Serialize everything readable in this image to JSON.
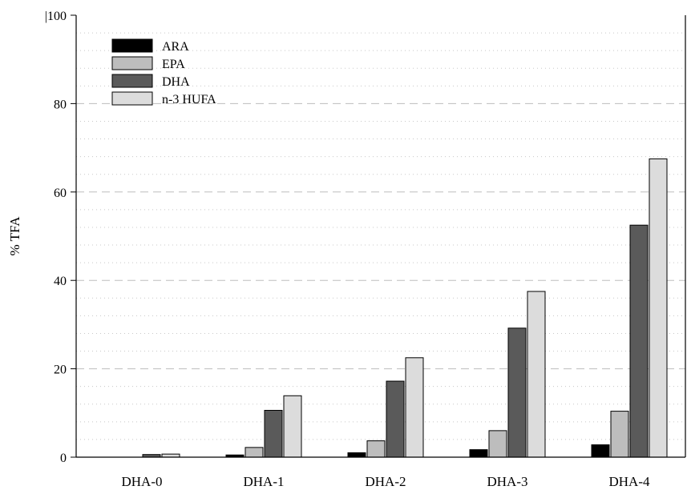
{
  "chart_data": {
    "type": "bar",
    "title": "",
    "xlabel": "",
    "ylabel": "% TFA",
    "ylim": [
      0,
      100
    ],
    "yticks": [
      0,
      20,
      40,
      60,
      80,
      100
    ],
    "grid": true,
    "legend_position": "top-left",
    "categories": [
      "DHA-0",
      "DHA-1",
      "DHA-2",
      "DHA-3",
      "DHA-4"
    ],
    "series": [
      {
        "name": "ARA",
        "color": "#000000",
        "values": [
          0.0,
          0.5,
          1.0,
          1.7,
          2.8
        ]
      },
      {
        "name": "EPA",
        "color": "#bdbdbd",
        "values": [
          0.0,
          2.2,
          3.7,
          6.0,
          10.4
        ]
      },
      {
        "name": "DHA",
        "color": "#5a5a5a",
        "values": [
          0.6,
          10.6,
          17.2,
          29.2,
          52.5
        ]
      },
      {
        "name": "n-3 HUFA",
        "color": "#dcdcdc",
        "values": [
          0.7,
          13.9,
          22.5,
          37.5,
          67.5
        ]
      }
    ]
  }
}
